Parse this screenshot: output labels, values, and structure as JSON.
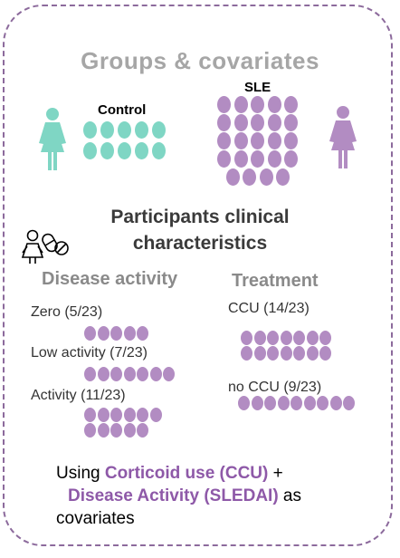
{
  "title": "Groups & covariates",
  "groups": {
    "control": {
      "label": "Control",
      "color": "#7fd6c4"
    },
    "sle": {
      "label": "SLE",
      "color": "#b28cc2"
    }
  },
  "subtitle": {
    "line1": "Participants  clinical",
    "line2": "characteristics"
  },
  "disease_activity": {
    "heading": "Disease activity",
    "items": [
      {
        "label": "Zero (5/23)",
        "count": 5
      },
      {
        "label": "Low activity (7/23)",
        "count": 7
      },
      {
        "label": "Activity (11/23)",
        "count": 11
      }
    ]
  },
  "treatment": {
    "heading": "Treatment",
    "items": [
      {
        "label": "CCU (14/23)",
        "count": 14
      },
      {
        "label": "no CCU (9/23)",
        "count": 9
      }
    ]
  },
  "footer": {
    "prefix": "Using ",
    "ccu": "Corticoid use (CCU)",
    "plus": " +",
    "sledai": "Disease Activity (SLEDAI)",
    "as": " as",
    "covariates": "covariates"
  },
  "icons": [
    "woman-icon-control",
    "woman-icon-sle",
    "patient-pills-icon"
  ]
}
